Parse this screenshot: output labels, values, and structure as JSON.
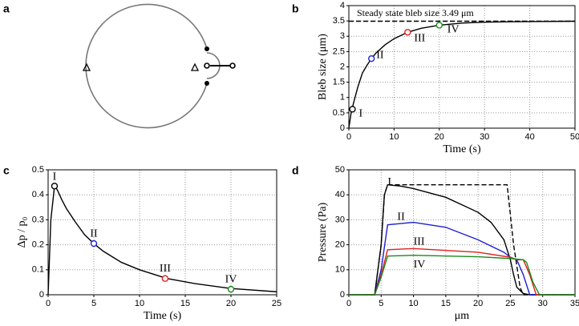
{
  "panels": [
    "a",
    "b",
    "c",
    "d"
  ],
  "chart_data": [
    {
      "type": "line",
      "xlabel": "Time (s)",
      "ylabel": "Bleb size (μm)",
      "annotation": "Steady state bleb size 3.49 μm",
      "xlim": [
        0,
        50
      ],
      "xticks": [
        0,
        10,
        20,
        30,
        40,
        50
      ],
      "ylim": [
        0,
        4
      ],
      "yticks": [
        0,
        0.5,
        1,
        1.5,
        2,
        2.5,
        3,
        3.5,
        4
      ],
      "grid": true,
      "series": [
        {
          "color": "#000000",
          "style": "solid",
          "x": [
            0,
            0.5,
            1,
            2,
            3,
            4,
            5,
            6,
            8,
            10,
            13,
            16,
            20,
            25,
            30,
            40,
            50
          ],
          "values": [
            0,
            0.5,
            0.8,
            1.35,
            1.8,
            2.05,
            2.27,
            2.45,
            2.72,
            2.92,
            3.13,
            3.26,
            3.36,
            3.43,
            3.46,
            3.48,
            3.49
          ]
        },
        {
          "color": "#000000",
          "style": "dashed",
          "x": [
            0,
            50
          ],
          "values": [
            3.49,
            3.49
          ]
        }
      ],
      "markers": [
        {
          "name": "I",
          "color": "#000000",
          "x": 0.8,
          "y": 0.62
        },
        {
          "name": "II",
          "color": "#1f1fd0",
          "x": 5,
          "y": 2.27
        },
        {
          "name": "III",
          "color": "#e02020",
          "x": 13,
          "y": 3.13
        },
        {
          "name": "IV",
          "color": "#1a8a1a",
          "x": 20,
          "y": 3.36
        }
      ]
    },
    {
      "type": "line",
      "xlabel": "Time (s)",
      "ylabel": "Δp / p₀",
      "xlim": [
        0,
        25
      ],
      "xticks": [
        0,
        5,
        10,
        15,
        20,
        25
      ],
      "ylim": [
        0,
        0.5
      ],
      "yticks": [
        0,
        0.1,
        0.2,
        0.3,
        0.4,
        0.5
      ],
      "grid": true,
      "series": [
        {
          "color": "#000000",
          "style": "solid",
          "x": [
            0,
            0.3,
            0.7,
            1,
            1.5,
            2,
            3,
            4,
            5,
            6,
            8,
            10,
            13,
            16,
            20,
            25
          ],
          "values": [
            0,
            0.3,
            0.435,
            0.42,
            0.38,
            0.345,
            0.29,
            0.24,
            0.205,
            0.175,
            0.13,
            0.1,
            0.065,
            0.045,
            0.025,
            0.012
          ]
        }
      ],
      "markers": [
        {
          "name": "I",
          "color": "#000000",
          "x": 0.7,
          "y": 0.435
        },
        {
          "name": "II",
          "color": "#1f1fd0",
          "x": 5,
          "y": 0.205
        },
        {
          "name": "III",
          "color": "#e02020",
          "x": 12.8,
          "y": 0.065
        },
        {
          "name": "IV",
          "color": "#1a8a1a",
          "x": 20,
          "y": 0.022
        }
      ]
    },
    {
      "type": "line",
      "xlabel": "μm",
      "ylabel": "Pressure (Pa)",
      "xlim": [
        0,
        35
      ],
      "xticks": [
        0,
        5,
        10,
        15,
        20,
        25,
        30,
        35
      ],
      "ylim": [
        0,
        50
      ],
      "yticks": [
        0,
        10,
        20,
        30,
        40,
        50
      ],
      "grid": true,
      "series": [
        {
          "color": "#000000",
          "style": "dashed",
          "x": [
            0,
            4,
            5,
            5.5,
            6,
            24.5,
            25.5,
            26.5,
            27,
            35
          ],
          "values": [
            0,
            0,
            20,
            40,
            44,
            44,
            20,
            3,
            0,
            0
          ]
        },
        {
          "name": "I",
          "color": "#000000",
          "style": "solid",
          "x": [
            0,
            4,
            5,
            5.5,
            6,
            8,
            10,
            15,
            20,
            22,
            24,
            25,
            25.5,
            26,
            27,
            28,
            35
          ],
          "values": [
            0,
            0,
            20,
            40,
            44,
            43.5,
            42.5,
            39,
            33,
            29,
            22,
            14,
            8,
            3,
            0.5,
            0,
            0
          ]
        },
        {
          "name": "II",
          "color": "#1f1fd0",
          "style": "solid",
          "x": [
            0,
            4,
            5,
            6,
            10,
            15,
            20,
            24,
            25,
            26,
            27,
            28,
            35
          ],
          "values": [
            0,
            0,
            10,
            28,
            29,
            27,
            22,
            17,
            15,
            14,
            8,
            0,
            0
          ]
        },
        {
          "name": "III",
          "color": "#e02020",
          "style": "solid",
          "x": [
            0,
            4,
            5,
            6,
            10,
            20,
            25,
            26,
            27,
            28,
            29,
            35
          ],
          "values": [
            0,
            0,
            8,
            18,
            18.5,
            17,
            15,
            14,
            14,
            8,
            0,
            0
          ]
        },
        {
          "name": "IV",
          "color": "#1a8a1a",
          "style": "solid",
          "x": [
            0,
            4,
            5,
            6,
            10,
            20,
            25,
            27,
            27.5,
            28.5,
            29.5,
            35
          ],
          "values": [
            0,
            0,
            7,
            15.5,
            15.8,
            15.2,
            14.5,
            14,
            13,
            5,
            0,
            0
          ]
        }
      ]
    }
  ]
}
